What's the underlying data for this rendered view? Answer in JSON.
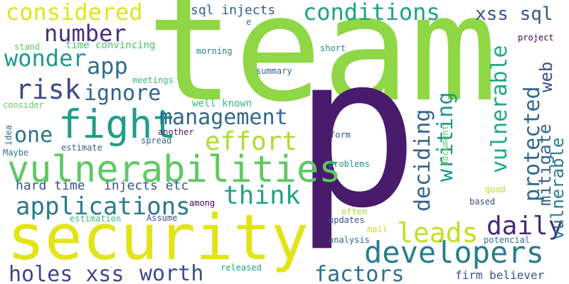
{
  "words": [
    {
      "text": "team",
      "color": "#8fd744"
    },
    {
      "text": "p",
      "color": "#481b6d"
    },
    {
      "text": "security",
      "color": "#e2e418"
    },
    {
      "text": "vulnerabilities",
      "color": "#5ec962"
    },
    {
      "text": "fight",
      "color": "#1f9e89"
    },
    {
      "text": "developers",
      "color": "#287c8e"
    },
    {
      "text": "applications",
      "color": "#2a788e"
    },
    {
      "text": "considered",
      "color": "#e2e418"
    },
    {
      "text": "conditions",
      "color": "#20a386"
    },
    {
      "text": "xss sql",
      "color": "#3b528b"
    },
    {
      "text": "number",
      "color": "#472f7d"
    },
    {
      "text": "wonder",
      "color": "#1f9a8a"
    },
    {
      "text": "app",
      "color": "#2e6e8e"
    },
    {
      "text": "risk",
      "color": "#3e4a89"
    },
    {
      "text": "ignore",
      "color": "#33638d"
    },
    {
      "text": "management",
      "color": "#31688e"
    },
    {
      "text": "one",
      "color": "#2c728e"
    },
    {
      "text": "effort",
      "color": "#addc30"
    },
    {
      "text": "think",
      "color": "#20a486"
    },
    {
      "text": "leads",
      "color": "#c2df23"
    },
    {
      "text": "daily",
      "color": "#482878"
    },
    {
      "text": "worth",
      "color": "#3e4c8a"
    },
    {
      "text": "holes xss",
      "color": "#3f4788"
    },
    {
      "text": "factors",
      "color": "#2d708e"
    },
    {
      "text": "deciding",
      "color": "#33638d"
    },
    {
      "text": "writing",
      "color": "#1f968b"
    },
    {
      "text": "vulnerable",
      "color": "#22a785"
    },
    {
      "text": "protected",
      "color": "#30678d"
    },
    {
      "text": "mitigate",
      "color": "#32648e"
    },
    {
      "text": "web",
      "color": "#3d4d8a"
    },
    {
      "text": "vulnerable",
      "color": "#287d8e"
    },
    {
      "text": "sql injects",
      "color": "#365c8d"
    },
    {
      "text": "hard time",
      "color": "#3b528b"
    },
    {
      "text": "injects etc",
      "color": "#3a548c"
    },
    {
      "text": "well known",
      "color": "#3aba76"
    },
    {
      "text": "time convincing",
      "color": "#4cc26c"
    },
    {
      "text": "firm believer",
      "color": "#3b528b"
    },
    {
      "text": "e",
      "color": "#2c738e"
    },
    {
      "text": "stand",
      "color": "#5ec962"
    },
    {
      "text": "morning",
      "color": "#26828e"
    },
    {
      "text": "short",
      "color": "#25848e"
    },
    {
      "text": "project",
      "color": "#440154"
    },
    {
      "text": "summary",
      "color": "#35608d"
    },
    {
      "text": "meetings",
      "color": "#3aba76"
    },
    {
      "text": "consider",
      "color": "#6ccd5a"
    },
    {
      "text": "idea",
      "color": "#2d708e"
    },
    {
      "text": "another",
      "color": "#482374"
    },
    {
      "text": "spread",
      "color": "#31678e"
    },
    {
      "text": "form",
      "color": "#3b528b"
    },
    {
      "text": "document",
      "color": "#5ec962"
    },
    {
      "text": "estimate",
      "color": "#355f8d"
    },
    {
      "text": "Maybe",
      "color": "#2a788e"
    },
    {
      "text": "problems",
      "color": "#20928c"
    },
    {
      "text": "good",
      "color": "#c2df23"
    },
    {
      "text": "among",
      "color": "#440154"
    },
    {
      "text": "based",
      "color": "#3e4c8a"
    },
    {
      "text": "often",
      "color": "#a0da39"
    },
    {
      "text": "estimation",
      "color": "#3aba76"
    },
    {
      "text": "Assume",
      "color": "#3b528b"
    },
    {
      "text": "updates",
      "color": "#3b528b"
    },
    {
      "text": "mail",
      "color": "#c8e020"
    },
    {
      "text": "analysis",
      "color": "#32648e"
    },
    {
      "text": "potencial",
      "color": "#2d708e"
    },
    {
      "text": "released",
      "color": "#1fa187"
    }
  ]
}
